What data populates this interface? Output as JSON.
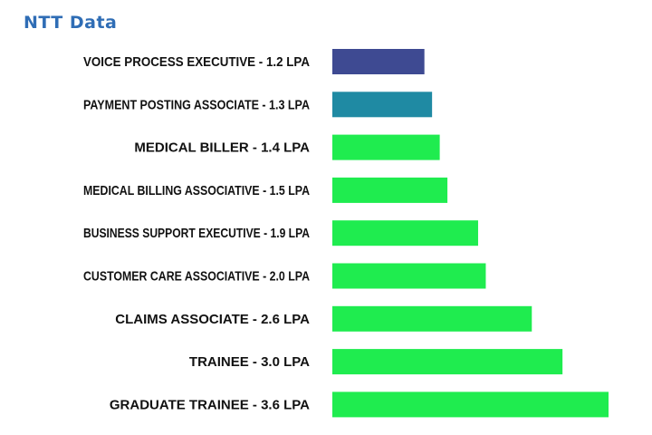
{
  "brand": {
    "logo_text": "NTT Data"
  },
  "chart_data": {
    "type": "bar",
    "orientation": "horizontal",
    "title": "",
    "xlabel": "",
    "ylabel": "",
    "grid": false,
    "legend": "none",
    "categories": [
      "VOICE PROCESS EXECUTIVE - 1.2 LPA",
      "PAYMENT POSTING ASSOCIATE - 1.3 LPA",
      "MEDICAL BILLER - 1.4 LPA",
      "MEDICAL BILLING ASSOCIATIVE - 1.5 LPA",
      "BUSINESS SUPPORT EXECUTIVE - 1.9 LPA",
      "CUSTOMER CARE ASSOCIATIVE - 2.0 LPA",
      "CLAIMS ASSOCIATE - 2.6  LPA",
      "TRAINEE - 3.0 LPA",
      "GRADUATE TRAINEE - 3.6 LPA"
    ],
    "values": [
      1.2,
      1.3,
      1.4,
      1.5,
      1.9,
      2.0,
      2.6,
      3.0,
      3.6
    ],
    "xlim": [
      0,
      3.6
    ],
    "colors": [
      "#3e4a92",
      "#1f8aa3",
      "#1fec4f",
      "#1fec4f",
      "#1fec4f",
      "#1fec4f",
      "#1fec4f",
      "#1fec4f",
      "#1fec4f"
    ]
  }
}
